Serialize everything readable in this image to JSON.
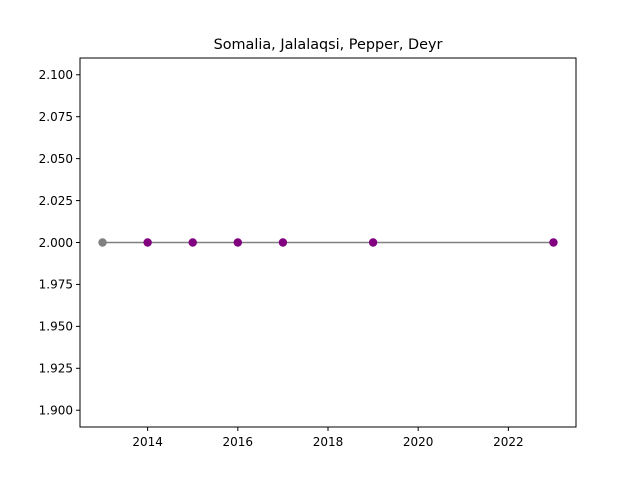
{
  "chart_data": {
    "type": "line",
    "title": "Somalia, Jalalaqsi, Pepper, Deyr",
    "xlabel": "",
    "ylabel": "",
    "xlim": [
      2012.5,
      2023.5
    ],
    "ylim": [
      1.89,
      2.11
    ],
    "xticks": [
      2014,
      2016,
      2018,
      2020,
      2022
    ],
    "xtick_labels": [
      "2014",
      "2016",
      "2018",
      "2020",
      "2022"
    ],
    "yticks": [
      1.9,
      1.925,
      1.95,
      1.975,
      2.0,
      2.025,
      2.05,
      2.075,
      2.1
    ],
    "ytick_labels": [
      "1.900",
      "1.925",
      "1.950",
      "1.975",
      "2.000",
      "2.025",
      "2.050",
      "2.075",
      "2.100"
    ],
    "grid": false,
    "series": [
      {
        "x": [
          2013,
          2014,
          2015,
          2016,
          2017,
          2019,
          2023
        ],
        "y": [
          2.0,
          2.0,
          2.0,
          2.0,
          2.0,
          2.0,
          2.0
        ],
        "line_color": "#808080",
        "point_colors": [
          "#808080",
          "#800080",
          "#800080",
          "#800080",
          "#800080",
          "#800080",
          "#800080"
        ]
      }
    ]
  }
}
